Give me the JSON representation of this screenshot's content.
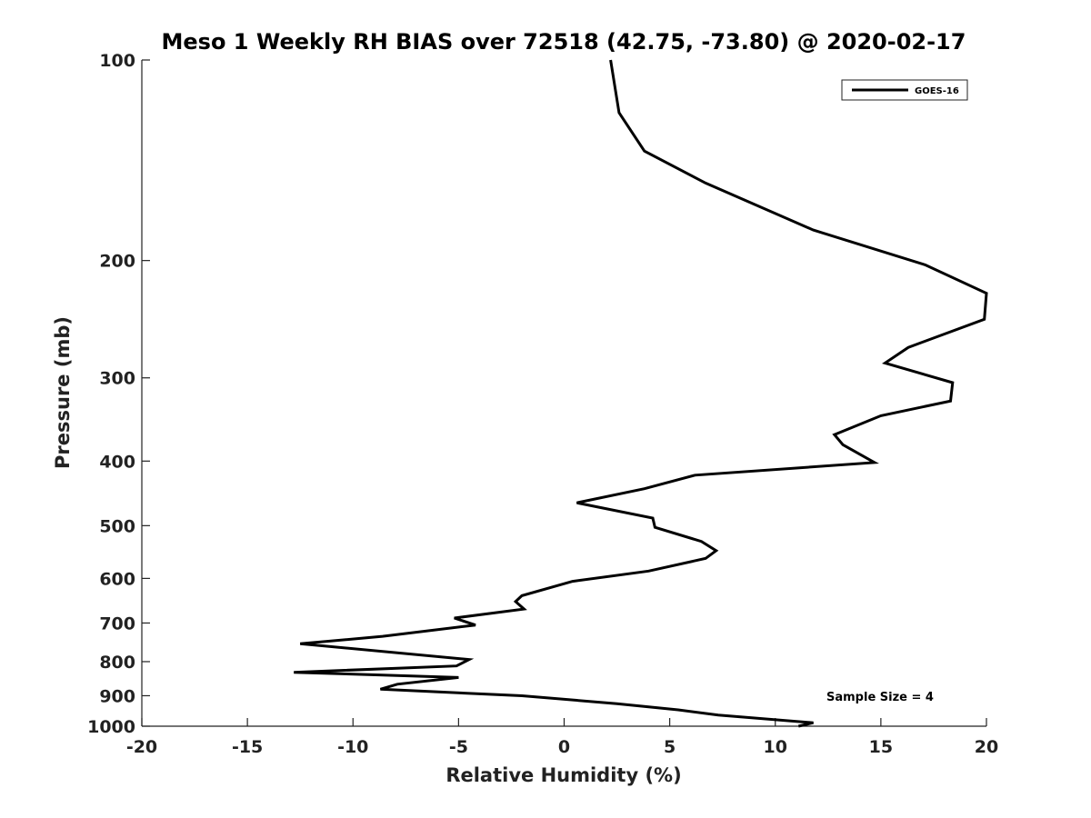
{
  "chart_data": {
    "type": "line",
    "title": "Meso 1 Weekly RH BIAS over 72518 (42.75, -73.80) @ 2020-02-17",
    "xlabel": "Relative Humidity (%)",
    "ylabel": "Pressure (mb)",
    "xlim": [
      -20,
      20
    ],
    "ylim": [
      1000,
      100
    ],
    "yscale": "log",
    "xticks": [
      -20,
      -15,
      -10,
      -5,
      0,
      5,
      10,
      15,
      20
    ],
    "yticks": [
      100,
      200,
      300,
      400,
      500,
      600,
      700,
      800,
      900,
      1000
    ],
    "grid": false,
    "legend_position": "top-right",
    "annotation": "Sample Size = 4",
    "series": [
      {
        "name": "GOES-16",
        "color": "#000000",
        "points": [
          [
            11.1,
            1000
          ],
          [
            11.8,
            988
          ],
          [
            7.3,
            962
          ],
          [
            5.4,
            945
          ],
          [
            2.5,
            925
          ],
          [
            -2.0,
            900
          ],
          [
            -8.7,
            880
          ],
          [
            -7.9,
            865
          ],
          [
            -5.0,
            845
          ],
          [
            -12.8,
            830
          ],
          [
            -5.1,
            812
          ],
          [
            -4.5,
            794
          ],
          [
            -12.5,
            752
          ],
          [
            -8.6,
            733
          ],
          [
            -4.2,
            705
          ],
          [
            -5.2,
            688
          ],
          [
            -1.9,
            667
          ],
          [
            -2.3,
            650
          ],
          [
            -2.0,
            637
          ],
          [
            0.4,
            606
          ],
          [
            4.0,
            585
          ],
          [
            6.7,
            560
          ],
          [
            7.2,
            545
          ],
          [
            6.5,
            528
          ],
          [
            4.3,
            503
          ],
          [
            4.2,
            487
          ],
          [
            0.6,
            462
          ],
          [
            3.8,
            440
          ],
          [
            6.2,
            420
          ],
          [
            14.7,
            402
          ],
          [
            13.2,
            378
          ],
          [
            12.8,
            365
          ],
          [
            15.0,
            342
          ],
          [
            18.3,
            325
          ],
          [
            18.4,
            305
          ],
          [
            15.2,
            285
          ],
          [
            16.3,
            270
          ],
          [
            19.9,
            245
          ],
          [
            20.0,
            224
          ],
          [
            17.1,
            203
          ],
          [
            11.8,
            180
          ],
          [
            6.7,
            153
          ],
          [
            3.8,
            137
          ],
          [
            2.6,
            120
          ],
          [
            2.2,
            100
          ]
        ]
      }
    ]
  }
}
